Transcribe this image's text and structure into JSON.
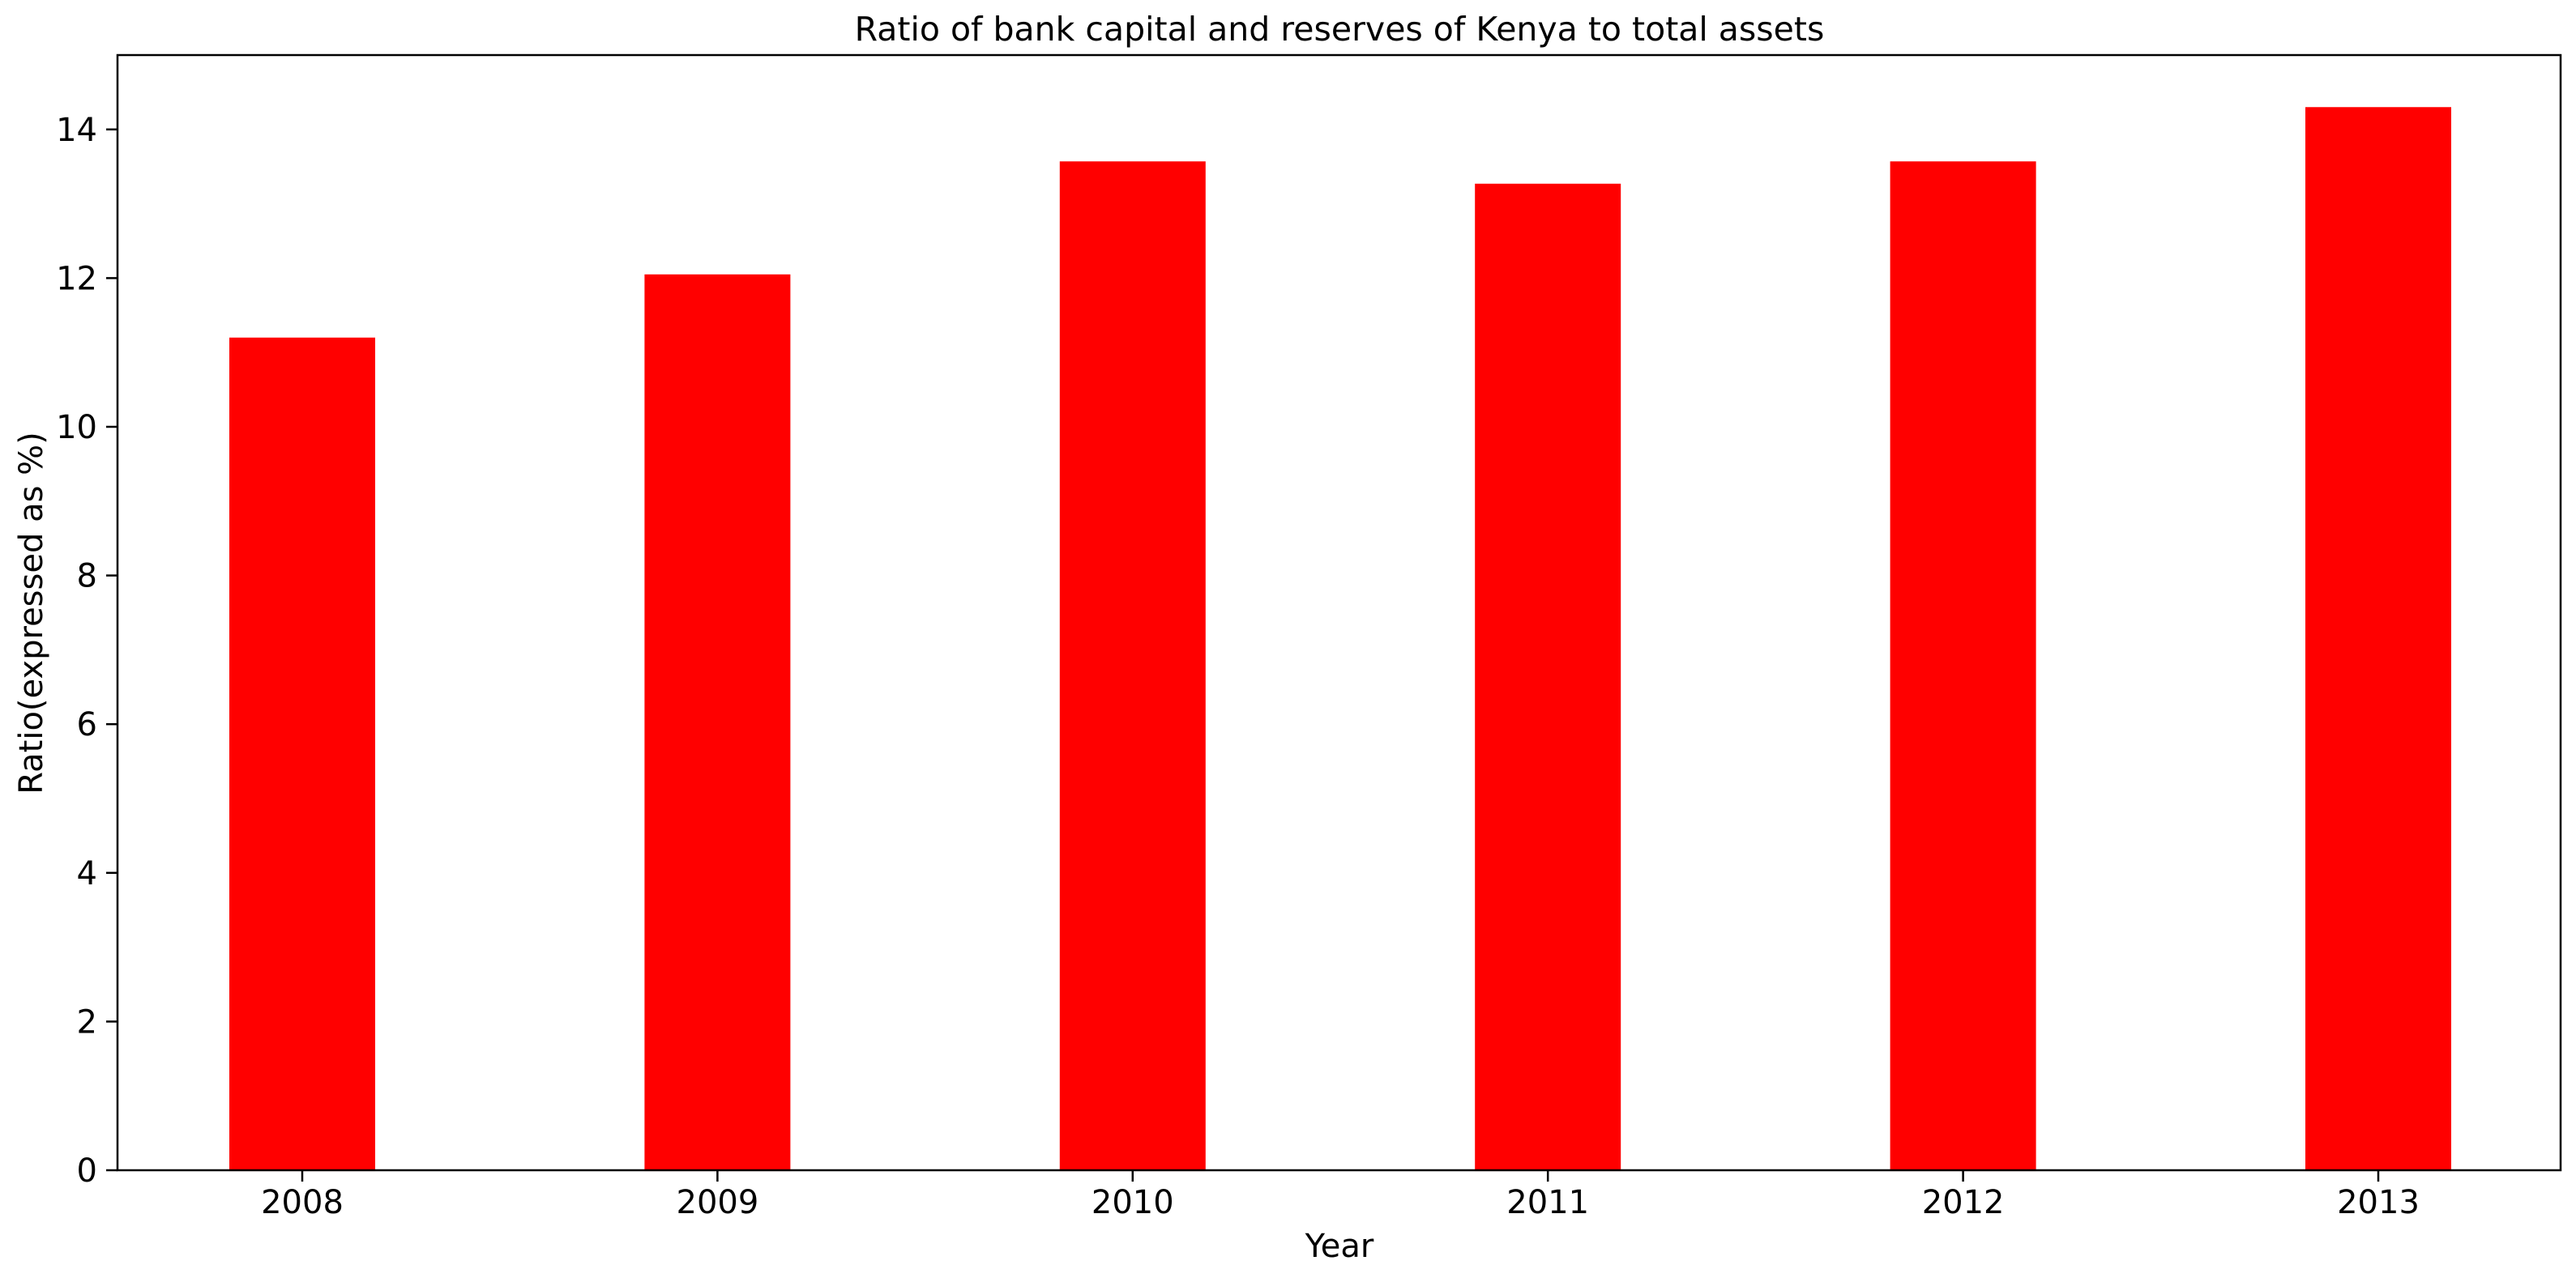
{
  "colors": {
    "bar": "#ff0000",
    "axis": "#000000",
    "background": "#ffffff"
  },
  "chart_data": {
    "type": "bar",
    "title": "Ratio of bank capital and reserves of Kenya to total assets",
    "xlabel": "Year",
    "ylabel": "Ratio(expressed as %)",
    "categories": [
      "2008",
      "2009",
      "2010",
      "2011",
      "2012",
      "2013"
    ],
    "series": [
      {
        "values": [
          11.2,
          12.05,
          13.57,
          13.27,
          13.57,
          14.3
        ]
      }
    ],
    "ylim": [
      0,
      15
    ],
    "yticks": [
      0,
      2,
      4,
      6,
      8,
      10,
      12,
      14
    ],
    "ytick_labels": [
      "0",
      "2",
      "4",
      "6",
      "8",
      "10",
      "12",
      "14"
    ],
    "grid": false,
    "legend": "none"
  }
}
